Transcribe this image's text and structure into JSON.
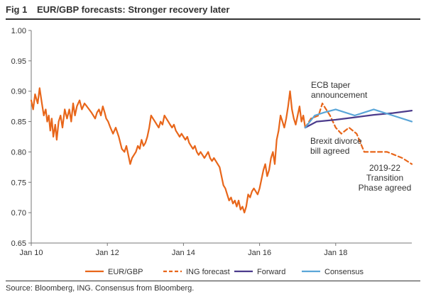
{
  "figure": {
    "number": "Fig 1",
    "title": "EUR/GBP forecasts: Stronger recovery later",
    "source": "Source: Bloomberg, ING. Consensus from Bloomberg."
  },
  "colors": {
    "eurgbp": "#E8661A",
    "ing_forecast": "#E8661A",
    "forward": "#4B3B8C",
    "consensus": "#5AA6D8",
    "axis": "#777777",
    "text": "#333333"
  },
  "chart_data": {
    "type": "line",
    "title": "EUR/GBP forecasts: Stronger recovery later",
    "xlabel": "",
    "ylabel": "",
    "xlim": [
      2010.0,
      2020.0
    ],
    "ylim": [
      0.65,
      1.0
    ],
    "grid": false,
    "legend_position": "bottom",
    "x_ticks": [
      {
        "value": 2010.0,
        "label": "Jan 10"
      },
      {
        "value": 2012.0,
        "label": "Jan 12"
      },
      {
        "value": 2014.0,
        "label": "Jan 14"
      },
      {
        "value": 2016.0,
        "label": "Jan 16"
      },
      {
        "value": 2018.0,
        "label": "Jan 18"
      }
    ],
    "y_ticks": [
      {
        "value": 0.65,
        "label": "0.65"
      },
      {
        "value": 0.7,
        "label": "0.70"
      },
      {
        "value": 0.75,
        "label": "0.75"
      },
      {
        "value": 0.8,
        "label": "0.80"
      },
      {
        "value": 0.85,
        "label": "0.85"
      },
      {
        "value": 0.9,
        "label": "0.90"
      },
      {
        "value": 0.95,
        "label": "0.95"
      },
      {
        "value": 1.0,
        "label": "1.00"
      }
    ],
    "series": [
      {
        "name": "EUR/GBP",
        "style": "solid",
        "x": [
          2010.0,
          2010.05,
          2010.1,
          2010.17,
          2010.22,
          2010.28,
          2010.33,
          2010.38,
          2010.42,
          2010.46,
          2010.5,
          2010.54,
          2010.58,
          2010.63,
          2010.67,
          2010.72,
          2010.77,
          2010.82,
          2010.88,
          2010.94,
          2011.0,
          2011.05,
          2011.1,
          2011.15,
          2011.2,
          2011.27,
          2011.33,
          2011.4,
          2011.46,
          2011.52,
          2011.58,
          2011.63,
          2011.68,
          2011.73,
          2011.78,
          2011.83,
          2011.88,
          2011.93,
          2011.97,
          2012.02,
          2012.08,
          2012.15,
          2012.22,
          2012.3,
          2012.38,
          2012.45,
          2012.5,
          2012.55,
          2012.6,
          2012.65,
          2012.7,
          2012.75,
          2012.8,
          2012.85,
          2012.9,
          2012.95,
          2013.0,
          2013.05,
          2013.1,
          2013.15,
          2013.2,
          2013.25,
          2013.3,
          2013.35,
          2013.4,
          2013.45,
          2013.5,
          2013.55,
          2013.6,
          2013.65,
          2013.7,
          2013.75,
          2013.8,
          2013.85,
          2013.9,
          2013.95,
          2014.0,
          2014.05,
          2014.1,
          2014.15,
          2014.2,
          2014.25,
          2014.3,
          2014.35,
          2014.4,
          2014.45,
          2014.5,
          2014.55,
          2014.6,
          2014.65,
          2014.7,
          2014.75,
          2014.8,
          2014.85,
          2014.9,
          2014.95,
          2015.0,
          2015.05,
          2015.1,
          2015.15,
          2015.2,
          2015.25,
          2015.3,
          2015.35,
          2015.4,
          2015.45,
          2015.5,
          2015.55,
          2015.6,
          2015.65,
          2015.7,
          2015.75,
          2015.8,
          2015.85,
          2015.9,
          2015.95,
          2016.0,
          2016.05,
          2016.1,
          2016.15,
          2016.2,
          2016.25,
          2016.3,
          2016.35,
          2016.4,
          2016.45,
          2016.5,
          2016.55,
          2016.6,
          2016.65,
          2016.7,
          2016.75,
          2016.8,
          2016.85,
          2016.9,
          2016.95,
          2017.0,
          2017.05,
          2017.1,
          2017.15,
          2017.2
        ],
        "y": [
          0.885,
          0.87,
          0.895,
          0.88,
          0.905,
          0.88,
          0.86,
          0.87,
          0.85,
          0.86,
          0.835,
          0.855,
          0.825,
          0.845,
          0.82,
          0.85,
          0.86,
          0.84,
          0.87,
          0.855,
          0.87,
          0.85,
          0.88,
          0.86,
          0.875,
          0.885,
          0.87,
          0.88,
          0.875,
          0.87,
          0.865,
          0.86,
          0.855,
          0.865,
          0.87,
          0.86,
          0.875,
          0.865,
          0.855,
          0.85,
          0.84,
          0.83,
          0.84,
          0.825,
          0.805,
          0.8,
          0.81,
          0.795,
          0.78,
          0.79,
          0.795,
          0.8,
          0.81,
          0.805,
          0.82,
          0.81,
          0.815,
          0.825,
          0.84,
          0.86,
          0.855,
          0.85,
          0.845,
          0.84,
          0.85,
          0.845,
          0.86,
          0.855,
          0.85,
          0.845,
          0.84,
          0.845,
          0.835,
          0.83,
          0.825,
          0.83,
          0.825,
          0.82,
          0.825,
          0.815,
          0.81,
          0.805,
          0.81,
          0.8,
          0.795,
          0.8,
          0.795,
          0.79,
          0.795,
          0.8,
          0.79,
          0.785,
          0.79,
          0.785,
          0.78,
          0.775,
          0.76,
          0.745,
          0.74,
          0.73,
          0.72,
          0.725,
          0.715,
          0.72,
          0.71,
          0.72,
          0.705,
          0.71,
          0.7,
          0.71,
          0.73,
          0.725,
          0.735,
          0.74,
          0.735,
          0.73,
          0.74,
          0.755,
          0.77,
          0.78,
          0.76,
          0.77,
          0.79,
          0.8,
          0.78,
          0.82,
          0.835,
          0.86,
          0.85,
          0.84,
          0.855,
          0.875,
          0.9,
          0.87,
          0.855,
          0.845,
          0.86,
          0.875,
          0.85,
          0.86,
          0.84
        ]
      },
      {
        "name": "ING forecast",
        "style": "dashed",
        "x": [
          2017.2,
          2017.35,
          2017.55,
          2017.65,
          2017.85,
          2018.0,
          2018.15,
          2018.35,
          2018.55,
          2018.75,
          2018.95,
          2019.15,
          2019.35,
          2019.55,
          2019.75,
          2020.0
        ],
        "y": [
          0.84,
          0.855,
          0.86,
          0.88,
          0.86,
          0.84,
          0.83,
          0.84,
          0.83,
          0.8,
          0.8,
          0.8,
          0.8,
          0.795,
          0.79,
          0.78
        ]
      },
      {
        "name": "Forward",
        "style": "solid",
        "x": [
          2017.2,
          2017.5,
          2018.0,
          2018.5,
          2019.0,
          2019.5,
          2020.0
        ],
        "y": [
          0.84,
          0.85,
          0.853,
          0.857,
          0.861,
          0.864,
          0.868
        ]
      },
      {
        "name": "Consensus",
        "style": "solid",
        "x": [
          2017.2,
          2017.45,
          2017.7,
          2018.0,
          2018.5,
          2019.0,
          2019.5,
          2020.0
        ],
        "y": [
          0.84,
          0.86,
          0.865,
          0.87,
          0.86,
          0.87,
          0.86,
          0.85
        ]
      }
    ],
    "annotations": [
      {
        "lines": [
          "ECB taper",
          "announcement"
        ]
      },
      {
        "lines": [
          "Brexit divorce",
          "bill agreed"
        ]
      },
      {
        "lines": [
          "2019-22",
          "Transition",
          "Phase agreed"
        ]
      }
    ]
  }
}
